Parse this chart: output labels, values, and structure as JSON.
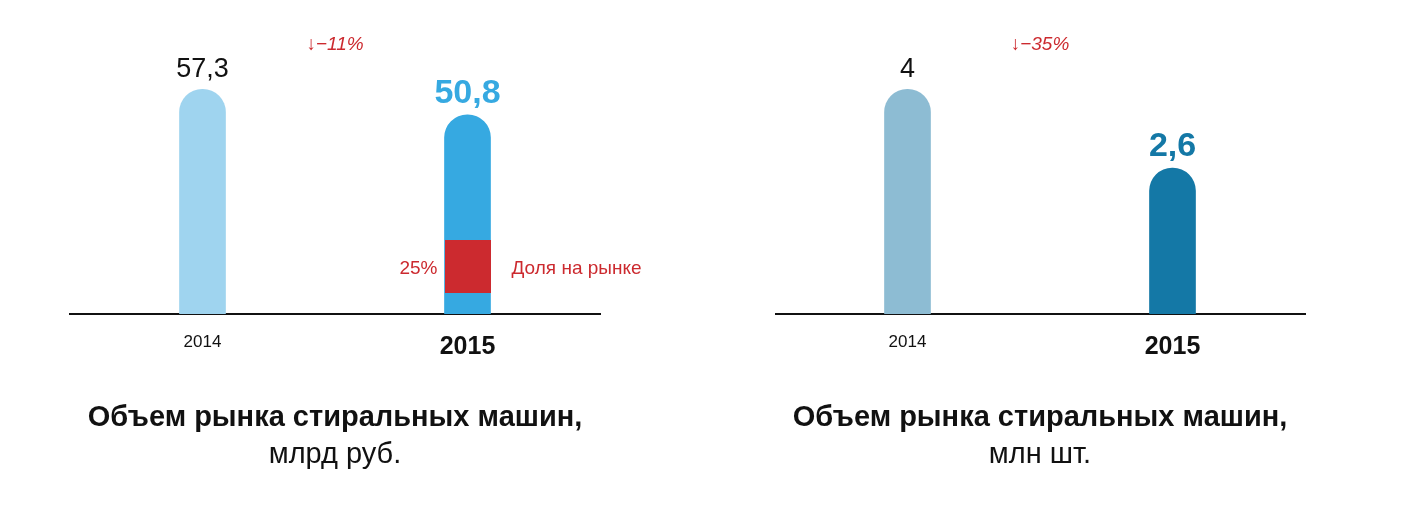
{
  "chart_data": [
    {
      "type": "bar",
      "categories": [
        "2014",
        "2015"
      ],
      "values": [
        57.3,
        50.8
      ],
      "colors": [
        "#9fd4ef",
        "#36a9e1"
      ],
      "value_labels": [
        "57,3",
        "50,8"
      ],
      "annotations": [
        "↓−11%",
        "25%",
        "Доля на рынке"
      ],
      "title": "Объем рынка стиральных машин,",
      "subtitle": "млрд руб."
    },
    {
      "type": "bar",
      "categories": [
        "2014",
        "2015"
      ],
      "values": [
        4,
        2.6
      ],
      "colors": [
        "#8dbcd3",
        "#1478a6"
      ],
      "value_labels": [
        "4",
        "2,6"
      ],
      "annotations": [
        "↓−35%"
      ],
      "title": "Объем рынка стиральных машин,",
      "subtitle": "млн шт."
    }
  ]
}
